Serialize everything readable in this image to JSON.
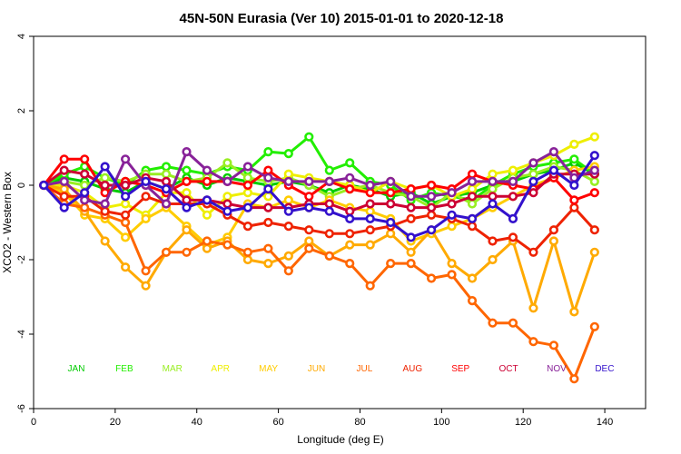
{
  "chart_data": {
    "type": "line",
    "title": "45N-50N Eurasia (Ver 10)   2015-01-01 to 2020-12-18",
    "xlabel": "Longitude (deg E)",
    "ylabel": "XCO2 - Western Box",
    "xlim": [
      0,
      150
    ],
    "ylim": [
      -6,
      4
    ],
    "xticks": [
      0,
      20,
      40,
      60,
      80,
      100,
      120,
      140
    ],
    "yticks": [
      -6,
      -4,
      -2,
      0,
      2,
      4
    ],
    "x": [
      2.5,
      7.5,
      12.5,
      17.5,
      22.5,
      27.5,
      32.5,
      37.5,
      42.5,
      47.5,
      52.5,
      57.5,
      62.5,
      67.5,
      72.5,
      77.5,
      82.5,
      87.5,
      92.5,
      97.5,
      102.5,
      107.5,
      112.5,
      117.5,
      122.5,
      127.5,
      132.5,
      137.5
    ],
    "series": [
      {
        "name": "JAN",
        "color": "#00cc00",
        "values": [
          0,
          0.2,
          0.1,
          -0.1,
          -0.2,
          0.1,
          -0.1,
          0.2,
          0,
          0.2,
          0.1,
          0,
          0.1,
          0,
          -0.2,
          0,
          -0.1,
          -0.3,
          -0.2,
          -0.5,
          -0.3,
          -0.2,
          0,
          0.1,
          0.3,
          0.4,
          0.6,
          0.3
        ]
      },
      {
        "name": "FEB",
        "color": "#22ee00",
        "values": [
          0,
          0.3,
          0.5,
          0.2,
          0,
          0.4,
          0.5,
          0.4,
          0.3,
          0.5,
          0.4,
          0.9,
          0.85,
          1.3,
          0.4,
          0.6,
          0.1,
          0,
          -0.4,
          -0.2,
          -0.3,
          -0.4,
          0,
          0.3,
          0.5,
          0.6,
          0.7,
          0.3
        ]
      },
      {
        "name": "MAR",
        "color": "#99ee22",
        "values": [
          0,
          0.1,
          0,
          0.2,
          0.1,
          0.3,
          0.3,
          0.1,
          0.2,
          0.6,
          0.2,
          0.1,
          0.2,
          0,
          -0.3,
          -0.1,
          0,
          -0.2,
          -0.3,
          -0.6,
          -0.2,
          -0.5,
          -0.1,
          0.2,
          0.3,
          0.5,
          0.4,
          0.1
        ]
      },
      {
        "name": "APR",
        "color": "#eeee00",
        "values": [
          0,
          0,
          -0.2,
          -0.6,
          -0.5,
          -0.8,
          -0.2,
          -0.2,
          -0.8,
          -0.3,
          -0.2,
          -0.3,
          0.3,
          0.2,
          0.1,
          0,
          -0.2,
          0.1,
          -0.1,
          0,
          -0.3,
          -0.1,
          0.3,
          0.4,
          0.6,
          0.8,
          1.1,
          1.3
        ]
      },
      {
        "name": "MAY",
        "color": "#ffcc00",
        "values": [
          0,
          -0.2,
          -0.8,
          -0.9,
          -1.4,
          -0.9,
          -0.6,
          -1.1,
          -1.6,
          -1.4,
          -0.5,
          -0.6,
          -0.4,
          -0.6,
          -0.4,
          -0.6,
          -0.7,
          -0.9,
          -1.5,
          -1.3,
          -1.1,
          -0.9,
          -0.6,
          -0.3,
          0,
          0.2,
          0.4,
          0.5
        ]
      },
      {
        "name": "JUN",
        "color": "#ffaa00",
        "values": [
          0,
          -0.1,
          -0.7,
          -1.5,
          -2.2,
          -2.7,
          -1.8,
          -1.2,
          -1.7,
          -1.5,
          -2.0,
          -2.1,
          -1.9,
          -1.5,
          -1.9,
          -1.6,
          -1.6,
          -1.3,
          -1.8,
          -1.2,
          -2.1,
          -2.5,
          -2.0,
          -1.5,
          -3.3,
          -1.5,
          -3.4,
          -1.8
        ]
      },
      {
        "name": "JUL",
        "color": "#ff6600",
        "values": [
          0,
          -0.5,
          -0.6,
          -0.8,
          -1.0,
          -2.3,
          -1.8,
          -1.8,
          -1.5,
          -1.6,
          -1.8,
          -1.7,
          -2.3,
          -1.7,
          -1.9,
          -2.1,
          -2.7,
          -2.1,
          -2.1,
          -2.5,
          -2.4,
          -3.1,
          -3.7,
          -3.7,
          -4.2,
          -4.3,
          -5.2,
          -3.8
        ]
      },
      {
        "name": "AUG",
        "color": "#ee2200",
        "values": [
          0,
          -0.3,
          -0.3,
          -0.7,
          -0.8,
          -0.3,
          -0.5,
          -0.5,
          -0.5,
          -0.8,
          -1.1,
          -1.0,
          -1.1,
          -1.2,
          -1.3,
          -1.3,
          -1.2,
          -1.1,
          -0.9,
          -0.8,
          -0.9,
          -1.1,
          -1.5,
          -1.4,
          -1.8,
          -1.2,
          -0.6,
          -1.2
        ]
      },
      {
        "name": "SEP",
        "color": "#ff0000",
        "values": [
          0,
          0.7,
          0.7,
          -0.2,
          0.1,
          0,
          -0.2,
          0.1,
          0.1,
          0.1,
          0,
          0.4,
          0,
          -0.3,
          0.1,
          -0.1,
          -0.2,
          -0.2,
          -0.1,
          0,
          -0.1,
          0.3,
          0.1,
          0,
          -0.1,
          0.2,
          -0.4,
          -0.2
        ]
      },
      {
        "name": "OCT",
        "color": "#cc0033",
        "values": [
          0,
          0.4,
          0.3,
          0,
          0,
          0.2,
          0.1,
          -0.4,
          -0.4,
          -0.5,
          -0.6,
          -0.6,
          -0.6,
          -0.5,
          -0.5,
          -0.7,
          -0.5,
          -0.5,
          -0.6,
          -0.6,
          -0.5,
          -0.3,
          -0.3,
          -0.3,
          -0.2,
          0.3,
          0.3,
          0.3
        ]
      },
      {
        "name": "NOV",
        "color": "#882299",
        "values": [
          0,
          0.1,
          -0.4,
          -0.5,
          0.7,
          0,
          -0.5,
          0.9,
          0.4,
          0.1,
          0.5,
          0.2,
          0.1,
          0.1,
          0.1,
          0.2,
          0,
          0.1,
          -0.3,
          -0.3,
          -0.2,
          0.1,
          0.1,
          0.1,
          0.6,
          0.9,
          0.2,
          0.4
        ]
      },
      {
        "name": "DEC",
        "color": "#3311cc",
        "values": [
          0,
          -0.6,
          -0.2,
          0.5,
          -0.3,
          0.1,
          -0.1,
          -0.6,
          -0.4,
          -0.7,
          -0.6,
          -0.1,
          -0.7,
          -0.6,
          -0.7,
          -0.9,
          -0.9,
          -1.0,
          -1.4,
          -1.2,
          -0.8,
          -0.9,
          -0.5,
          -0.9,
          0.1,
          0.4,
          0,
          0.8
        ]
      }
    ]
  }
}
